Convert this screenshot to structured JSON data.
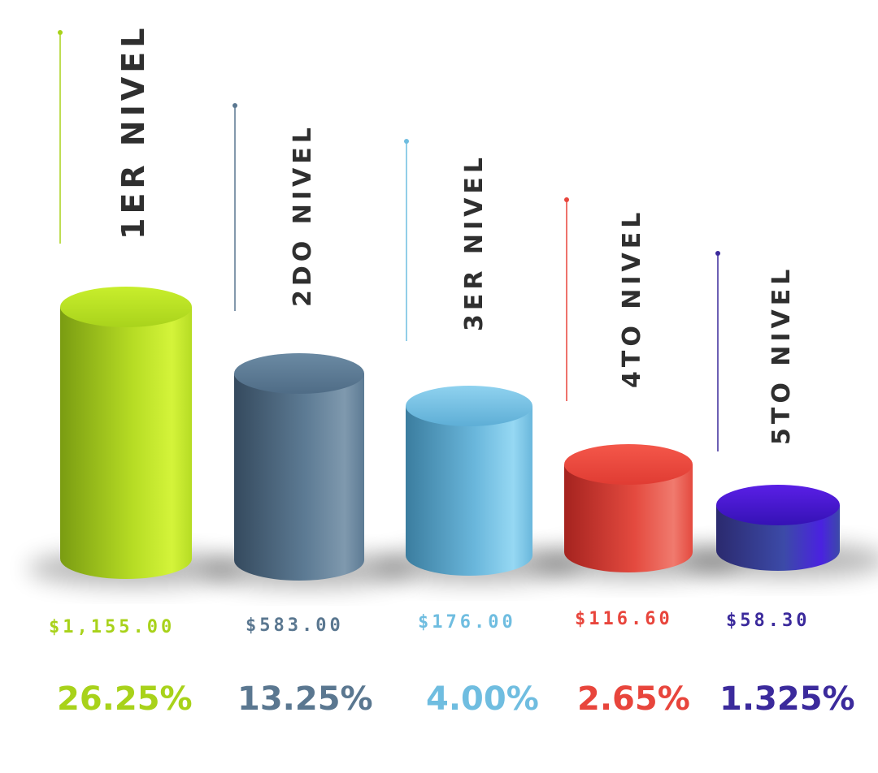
{
  "chart_data": {
    "type": "bar",
    "style": "3d-cylinder",
    "categories": [
      "1ER NIVEL",
      "2DO NIVEL",
      "3ER NIVEL",
      "4TO NIVEL",
      "5TO NIVEL"
    ],
    "values": [
      1155.0,
      583.0,
      176.0,
      116.6,
      58.3
    ],
    "value_labels": [
      "$1,155.00",
      "$583.00",
      "$176.00",
      "$116.60",
      "$58.30"
    ],
    "percentages": [
      "26.25%",
      "13.25%",
      "4.00%",
      "2.65%",
      "1.325%"
    ],
    "colors": [
      "#a8d21a",
      "#5a7790",
      "#6fbde0",
      "#e8453c",
      "#3b2a9c"
    ],
    "title": "",
    "xlabel": "",
    "ylabel": ""
  }
}
